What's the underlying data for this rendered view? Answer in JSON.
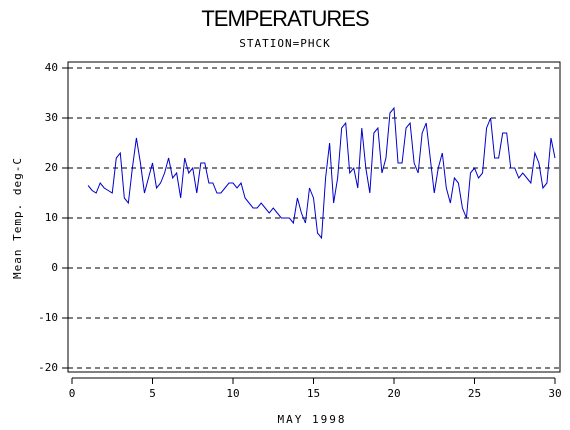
{
  "chart_data": {
    "type": "line",
    "title": "TEMPERATURES",
    "subtitle": "STATION=PHCK",
    "x_label": "MAY 1998",
    "y_label": "Mean Temp. deg-C",
    "x": [
      1,
      1.25,
      1.5,
      1.75,
      2,
      2.25,
      2.5,
      2.75,
      3,
      3.25,
      3.5,
      3.75,
      4,
      4.25,
      4.5,
      4.75,
      5,
      5.25,
      5.5,
      5.75,
      6,
      6.25,
      6.5,
      6.75,
      7,
      7.25,
      7.5,
      7.75,
      8,
      8.25,
      8.5,
      8.75,
      9,
      9.25,
      9.5,
      9.75,
      10,
      10.25,
      10.5,
      10.75,
      11,
      11.25,
      11.5,
      11.75,
      12,
      12.25,
      12.5,
      12.75,
      13,
      13.25,
      13.5,
      13.75,
      14,
      14.25,
      14.5,
      14.75,
      15,
      15.25,
      15.5,
      15.75,
      16,
      16.25,
      16.5,
      16.75,
      17,
      17.25,
      17.5,
      17.75,
      18,
      18.25,
      18.5,
      18.75,
      19,
      19.25,
      19.5,
      19.75,
      20,
      20.25,
      20.5,
      20.75,
      21,
      21.25,
      21.5,
      21.75,
      22,
      22.25,
      22.5,
      22.75,
      23,
      23.25,
      23.5,
      23.75,
      24,
      24.25,
      24.5,
      24.75,
      25,
      25.25,
      25.5,
      25.75,
      26,
      26.25,
      26.5,
      26.75,
      27,
      27.25,
      27.5,
      27.75,
      28,
      28.25,
      28.5,
      28.75,
      29,
      29.25,
      29.5,
      29.75,
      30
    ],
    "series": [
      {
        "name": "Mean Temp",
        "color": "#0000cc",
        "values": [
          16.5,
          15.5,
          15,
          17,
          16,
          15.5,
          15,
          22,
          23,
          14,
          13,
          20,
          26,
          21,
          15,
          18,
          21,
          16,
          17,
          19,
          22,
          18,
          19,
          14,
          22,
          19,
          20,
          15,
          21,
          21,
          17,
          17,
          15,
          15,
          16,
          17,
          17,
          16,
          17,
          14,
          13,
          12,
          12,
          13,
          12,
          11,
          12,
          11,
          10,
          10,
          10,
          9,
          14,
          11,
          9,
          16,
          14,
          7,
          6,
          18,
          25,
          13,
          18,
          28,
          29,
          19,
          20,
          16,
          28,
          20,
          15,
          27,
          28,
          19,
          22,
          31,
          32,
          21,
          21,
          28,
          29,
          21,
          19,
          27,
          29,
          22,
          15,
          20,
          23,
          16,
          13,
          18,
          17,
          12,
          10,
          19,
          20,
          18,
          19,
          28,
          30,
          22,
          22,
          27,
          27,
          20,
          20,
          18,
          19,
          18,
          17,
          23,
          21,
          16,
          17,
          26,
          22
        ]
      }
    ],
    "xlim": [
      0,
      30
    ],
    "ylim": [
      -20,
      40
    ],
    "xticks": [
      0,
      5,
      10,
      15,
      20,
      25,
      30
    ],
    "yticks": [
      -20,
      -10,
      0,
      10,
      20,
      30,
      40
    ],
    "grid": true
  }
}
